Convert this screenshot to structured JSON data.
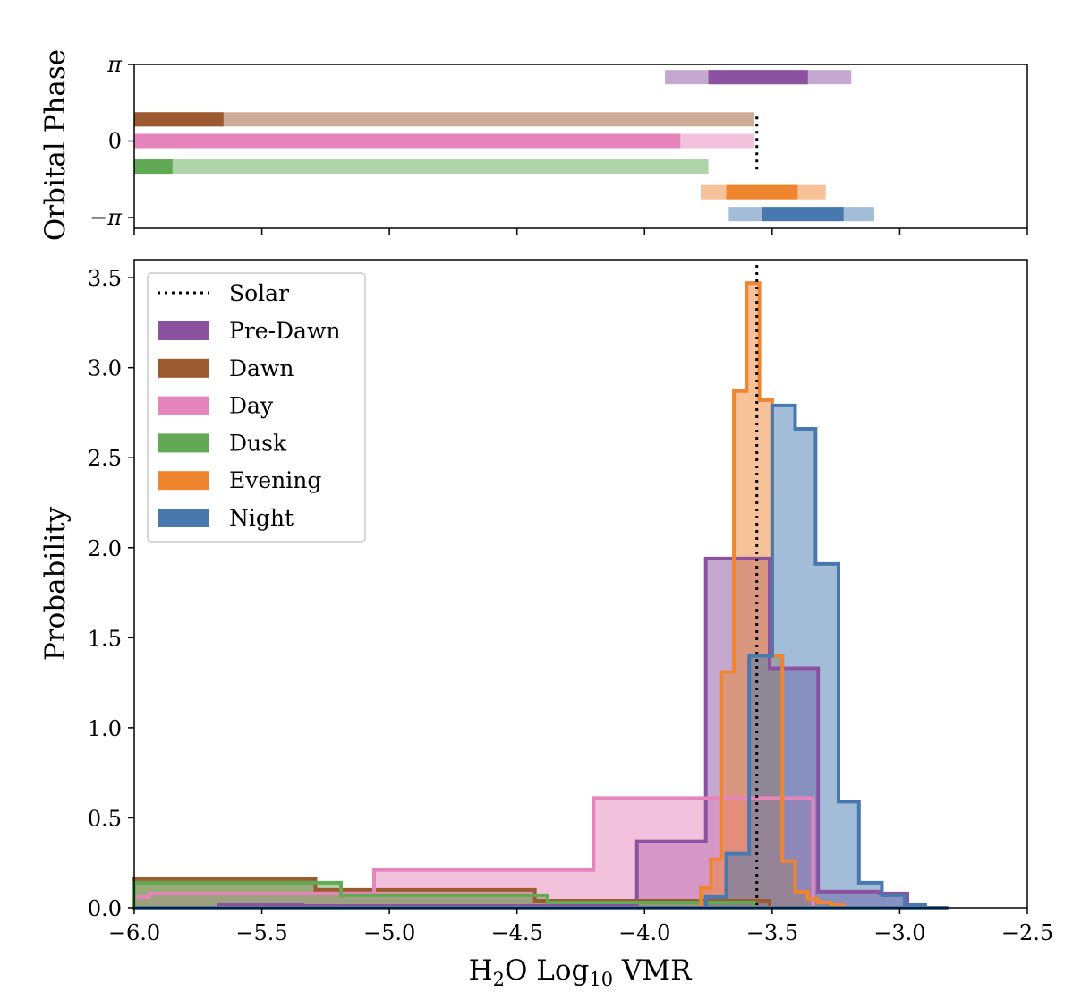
{
  "chart_data": [
    {
      "type": "bar",
      "panel": "orbital-phase",
      "ylabel": "Orbital Phase",
      "xlim": [
        -6.0,
        -2.5
      ],
      "yticks": [
        "π",
        "0",
        "−π"
      ],
      "bars": [
        {
          "name": "Pre-Dawn",
          "y": 2.62,
          "inner": [
            -3.75,
            -3.36
          ],
          "outer": [
            -3.92,
            -3.19
          ],
          "color": "#8b52a0"
        },
        {
          "name": "Dawn",
          "y": 0.89,
          "inner": [
            -6.0,
            -5.65
          ],
          "outer": [
            -6.0,
            -3.57
          ],
          "color": "#9c5a31"
        },
        {
          "name": "Day",
          "y": 0.0,
          "inner": [
            -6.0,
            -3.86
          ],
          "outer": [
            -6.0,
            -3.57
          ],
          "color": "#e585bb"
        },
        {
          "name": "Dusk",
          "y": -1.05,
          "inner": [
            -6.0,
            -5.85
          ],
          "outer": [
            -6.0,
            -3.75
          ],
          "color": "#61a955"
        },
        {
          "name": "Evening",
          "y": -2.1,
          "inner": [
            -3.68,
            -3.4
          ],
          "outer": [
            -3.78,
            -3.29
          ],
          "color": "#f08530"
        },
        {
          "name": "Night",
          "y": -3.0,
          "inner": [
            -3.54,
            -3.22
          ],
          "outer": [
            -3.67,
            -3.1
          ],
          "color": "#4779af"
        }
      ],
      "solar_marker": {
        "x": -3.56,
        "y_range": [
          -1.3,
          1.0
        ]
      }
    },
    {
      "type": "area",
      "panel": "probability-histogram",
      "xlabel": "H2O Log10 VMR",
      "xlabel_parts": {
        "pre": "H",
        "sub1": "2",
        "mid": "O Log",
        "sub2": "10",
        "post": " VMR"
      },
      "ylabel": "Probability",
      "xlim": [
        -6.0,
        -2.5
      ],
      "ylim": [
        0.0,
        3.6
      ],
      "xticks": [
        -6.0,
        -5.5,
        -5.0,
        -4.5,
        -4.0,
        -3.5,
        -3.0,
        -2.5
      ],
      "xtick_labels": [
        "−6.0",
        "−5.5",
        "−5.0",
        "−4.5",
        "−4.0",
        "−3.5",
        "−3.0",
        "−2.5"
      ],
      "yticks": [
        0.0,
        0.5,
        1.0,
        1.5,
        2.0,
        2.5,
        3.0,
        3.5
      ],
      "ytick_labels": [
        "0.0",
        "0.5",
        "1.0",
        "1.5",
        "2.0",
        "2.5",
        "3.0",
        "3.5"
      ],
      "grid": false,
      "legend": {
        "placement": "top-left"
      },
      "solar_line": {
        "name": "Solar",
        "x": -3.56,
        "style": "dotted"
      },
      "series": [
        {
          "name": "Pre-Dawn",
          "color": "#8b52a0",
          "edges": [
            -6.0,
            -5.67,
            -5.34,
            -5.01,
            -4.68,
            -4.35,
            -4.03,
            -3.76,
            -3.51,
            -3.32,
            -3.08,
            -2.97
          ],
          "values": [
            0.0,
            0.02,
            0.01,
            0.01,
            0.01,
            0.01,
            0.37,
            1.94,
            1.33,
            0.09,
            0.08
          ]
        },
        {
          "name": "Dawn",
          "color": "#9c5a31",
          "edges": [
            -6.0,
            -5.29,
            -4.43,
            -3.51
          ],
          "values": [
            0.16,
            0.1,
            0.04
          ]
        },
        {
          "name": "Day",
          "color": "#e585bb",
          "edges": [
            -6.0,
            -5.94,
            -5.06,
            -4.2,
            -3.34
          ],
          "values": [
            0.06,
            0.08,
            0.21,
            0.61
          ]
        },
        {
          "name": "Dusk",
          "color": "#61a955",
          "edges": [
            -6.0,
            -5.19,
            -4.38,
            -3.57
          ],
          "values": [
            0.14,
            0.07,
            0.03
          ]
        },
        {
          "name": "Evening",
          "color": "#f08530",
          "edges": [
            -6.0,
            -3.78,
            -3.74,
            -3.7,
            -3.65,
            -3.6,
            -3.55,
            -3.5,
            -3.46,
            -3.41,
            -3.36,
            -3.32,
            -3.27,
            -3.22,
            -3.18,
            -3.13,
            -3.09
          ],
          "values": [
            0.0,
            0.11,
            0.27,
            1.31,
            2.87,
            3.47,
            2.82,
            1.4,
            0.26,
            0.09,
            0.05,
            0.03,
            0.02,
            0.0,
            0.0,
            0.0
          ]
        },
        {
          "name": "Night",
          "color": "#4779af",
          "edges": [
            -6.0,
            -3.76,
            -3.68,
            -3.59,
            -3.5,
            -3.41,
            -3.33,
            -3.24,
            -3.16,
            -3.07,
            -2.98,
            -2.9,
            -2.81
          ],
          "values": [
            0.0,
            0.06,
            0.3,
            1.4,
            2.79,
            2.66,
            1.91,
            0.59,
            0.14,
            0.07,
            0.02,
            0.0
          ]
        }
      ]
    }
  ]
}
